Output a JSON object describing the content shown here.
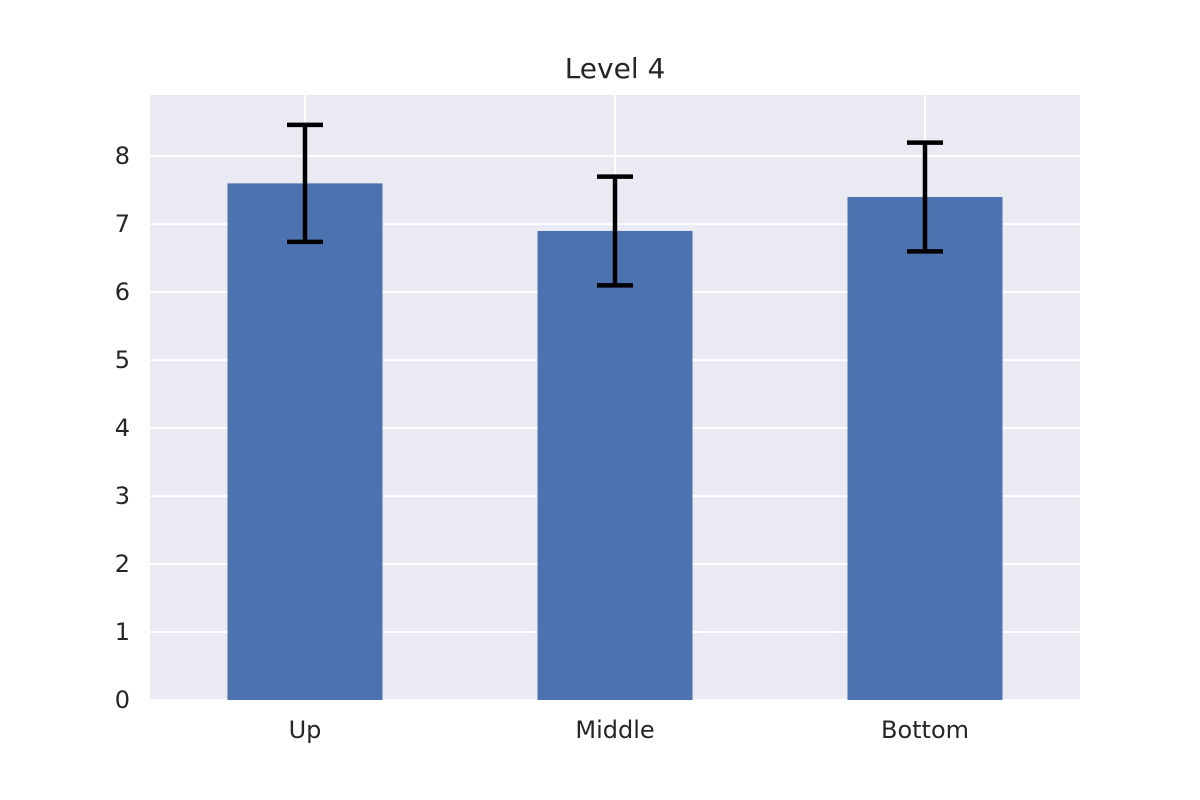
{
  "chart_data": {
    "type": "bar",
    "title": "Level 4",
    "xlabel": "",
    "ylabel": "",
    "categories": [
      "Up",
      "Middle",
      "Bottom"
    ],
    "series": [
      {
        "values": [
          7.6,
          6.9,
          7.4
        ],
        "error": [
          0.86,
          0.8,
          0.8
        ]
      }
    ],
    "ylim": [
      0,
      8.9
    ],
    "yticks": [
      0,
      1,
      2,
      3,
      4,
      5,
      6,
      7,
      8
    ],
    "grid": true,
    "legend": "none",
    "colors": {
      "bar": "#4c72b0",
      "error_bar": "#000000",
      "plot_background": "#eaeaf2",
      "grid": "#ffffff",
      "text": "#262626"
    }
  }
}
